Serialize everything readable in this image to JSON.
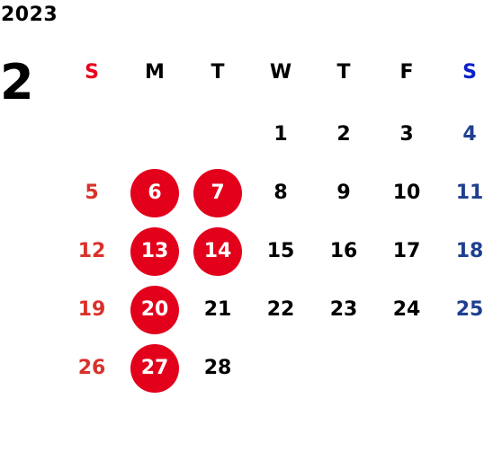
{
  "calendar": {
    "year": "2023",
    "month": "2",
    "weekdays": [
      "S",
      "M",
      "T",
      "W",
      "T",
      "F",
      "S"
    ],
    "weeks": [
      [
        "",
        "",
        "",
        "1",
        "2",
        "3",
        "4"
      ],
      [
        "5",
        "6",
        "7",
        "8",
        "9",
        "10",
        "11"
      ],
      [
        "12",
        "13",
        "14",
        "15",
        "16",
        "17",
        "18"
      ],
      [
        "19",
        "20",
        "21",
        "22",
        "23",
        "24",
        "25"
      ],
      [
        "26",
        "27",
        "28",
        "",
        "",
        "",
        ""
      ]
    ],
    "highlighted_days": [
      "6",
      "7",
      "13",
      "14",
      "20",
      "27"
    ],
    "colors": {
      "sunday": "#d9312b",
      "saturday": "#1f3f8f",
      "highlight": "#e3001b",
      "text": "#000000"
    }
  }
}
